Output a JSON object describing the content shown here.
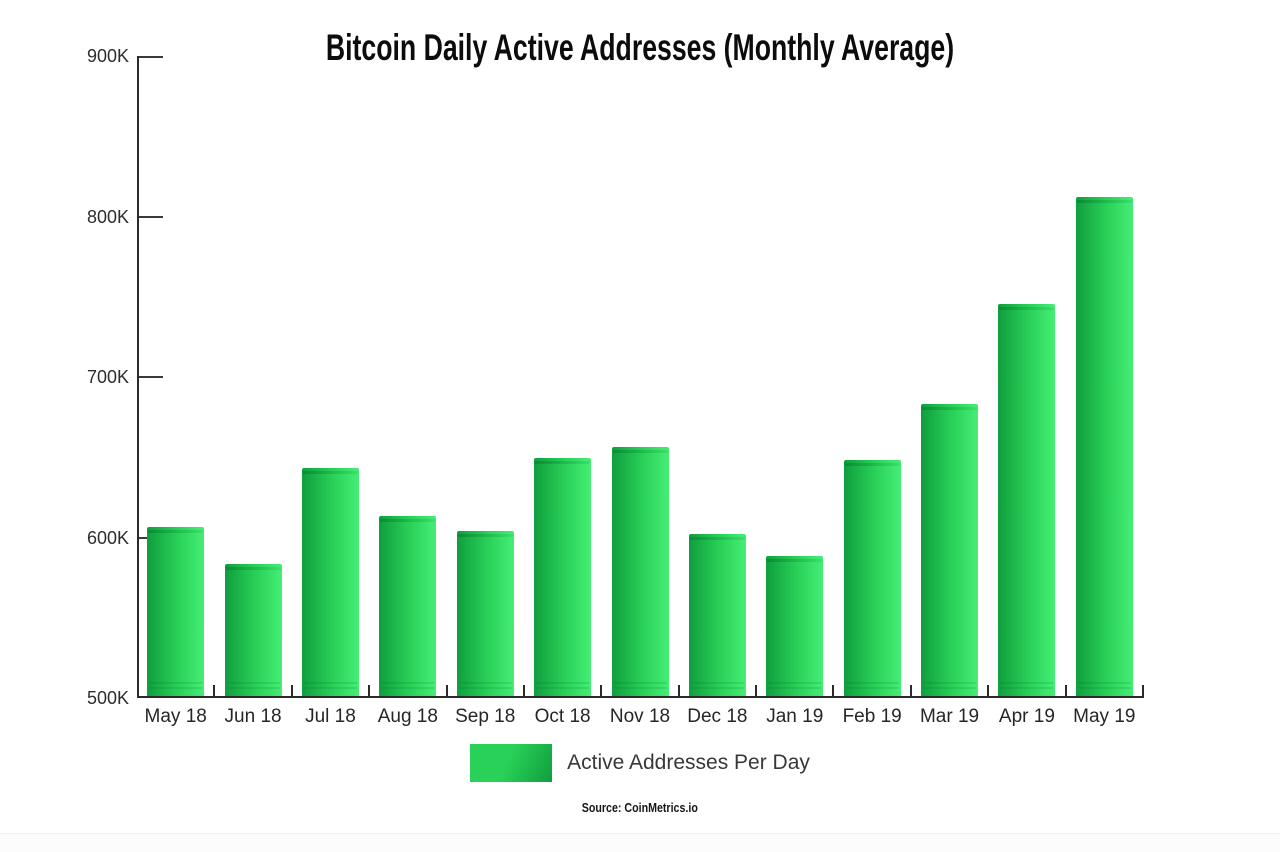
{
  "chart": {
    "title": "Bitcoin Daily Active Addresses (Monthly Average)"
  },
  "legend": {
    "label": "Active Addresses Per Day"
  },
  "source": {
    "text": "Source: CoinMetrics.io"
  },
  "colors": {
    "bar_gradient": [
      "#0f9e3e",
      "#2ad158",
      "#45ee75"
    ],
    "axis": "#2b2b2b",
    "tick": "#3a3a3a",
    "text": "#2e2e2e",
    "title_text": "#0c0c0c"
  },
  "chart_data": {
    "type": "bar",
    "title": "Bitcoin Daily Active Addresses (Monthly Average)",
    "categories": [
      "May 18",
      "Jun 18",
      "Jul 18",
      "Aug 18",
      "Sep 18",
      "Oct 18",
      "Nov 18",
      "Dec 18",
      "Jan 19",
      "Feb 19",
      "Mar 19",
      "Apr 19",
      "May 19"
    ],
    "values_thousands": [
      605,
      582,
      642,
      612,
      603,
      648,
      655,
      601,
      587,
      647,
      682,
      744,
      811
    ],
    "unit": "K",
    "xlabel": "",
    "ylabel": "",
    "y_axis": {
      "min_thousands": 500,
      "max_thousands": 900,
      "tick_step_thousands": 100,
      "tick_labels": [
        "900K",
        "800K",
        "700K",
        "600K",
        "500K"
      ]
    },
    "grid": false,
    "legend_entries": [
      "Active Addresses Per Day"
    ],
    "legend_position": "bottom",
    "annotations": [
      "Source: CoinMetrics.io"
    ]
  }
}
